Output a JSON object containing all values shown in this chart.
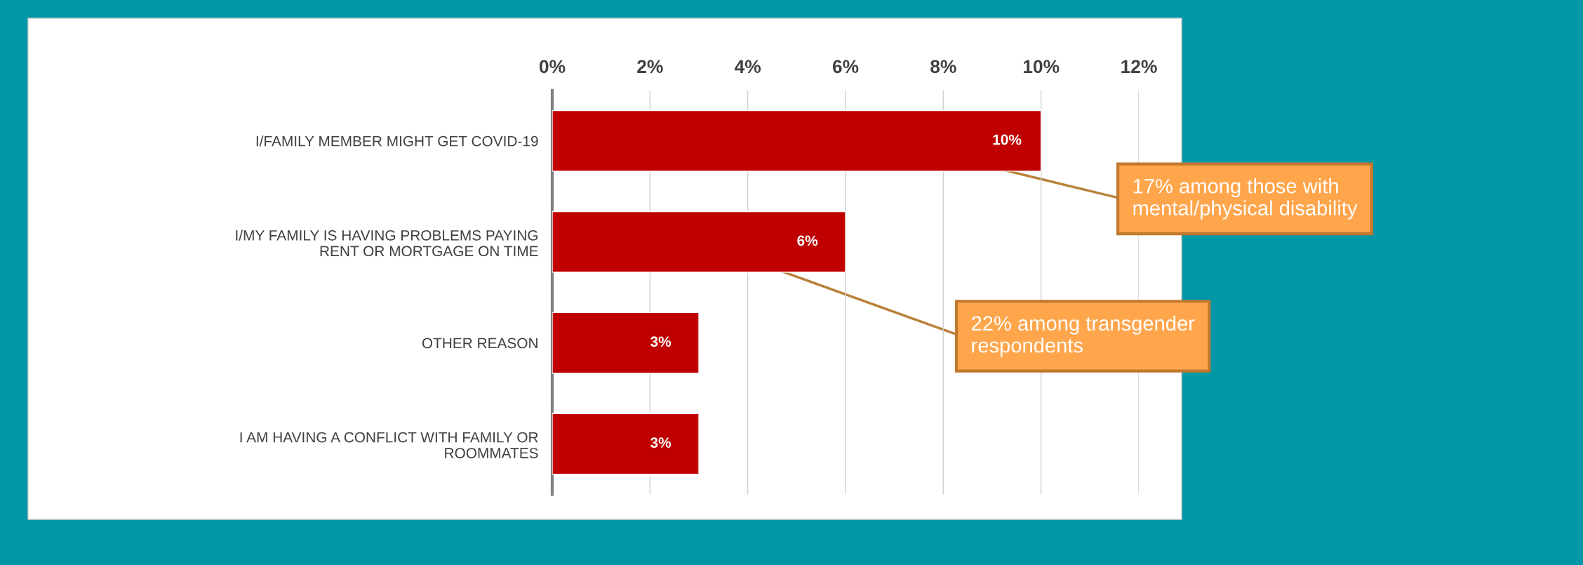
{
  "chart_data": {
    "type": "bar",
    "orientation": "horizontal",
    "categories": [
      "I/FAMILY MEMBER MIGHT GET COVID-19",
      "I/MY FAMILY IS HAVING PROBLEMS PAYING\nRENT OR MORTGAGE ON TIME",
      "OTHER REASON",
      "I AM HAVING A CONFLICT WITH FAMILY OR\nROOMMATES"
    ],
    "values": [
      10,
      6,
      3,
      3
    ],
    "value_labels": [
      "10%",
      "6%",
      "3%",
      "3%"
    ],
    "color": "#c00000",
    "xlim": [
      0,
      12
    ],
    "xticks": [
      {
        "value": 0,
        "label": "0%"
      },
      {
        "value": 2,
        "label": "2%"
      },
      {
        "value": 4,
        "label": "4%"
      },
      {
        "value": 6,
        "label": "6%"
      },
      {
        "value": 8,
        "label": "8%"
      },
      {
        "value": 10,
        "label": "10%"
      },
      {
        "value": 12,
        "label": "12%"
      }
    ],
    "grid": "x",
    "legend": false,
    "annotations": [
      "17% among those with\nmental/physical disability",
      "22% among transgender\nrespondents"
    ]
  }
}
